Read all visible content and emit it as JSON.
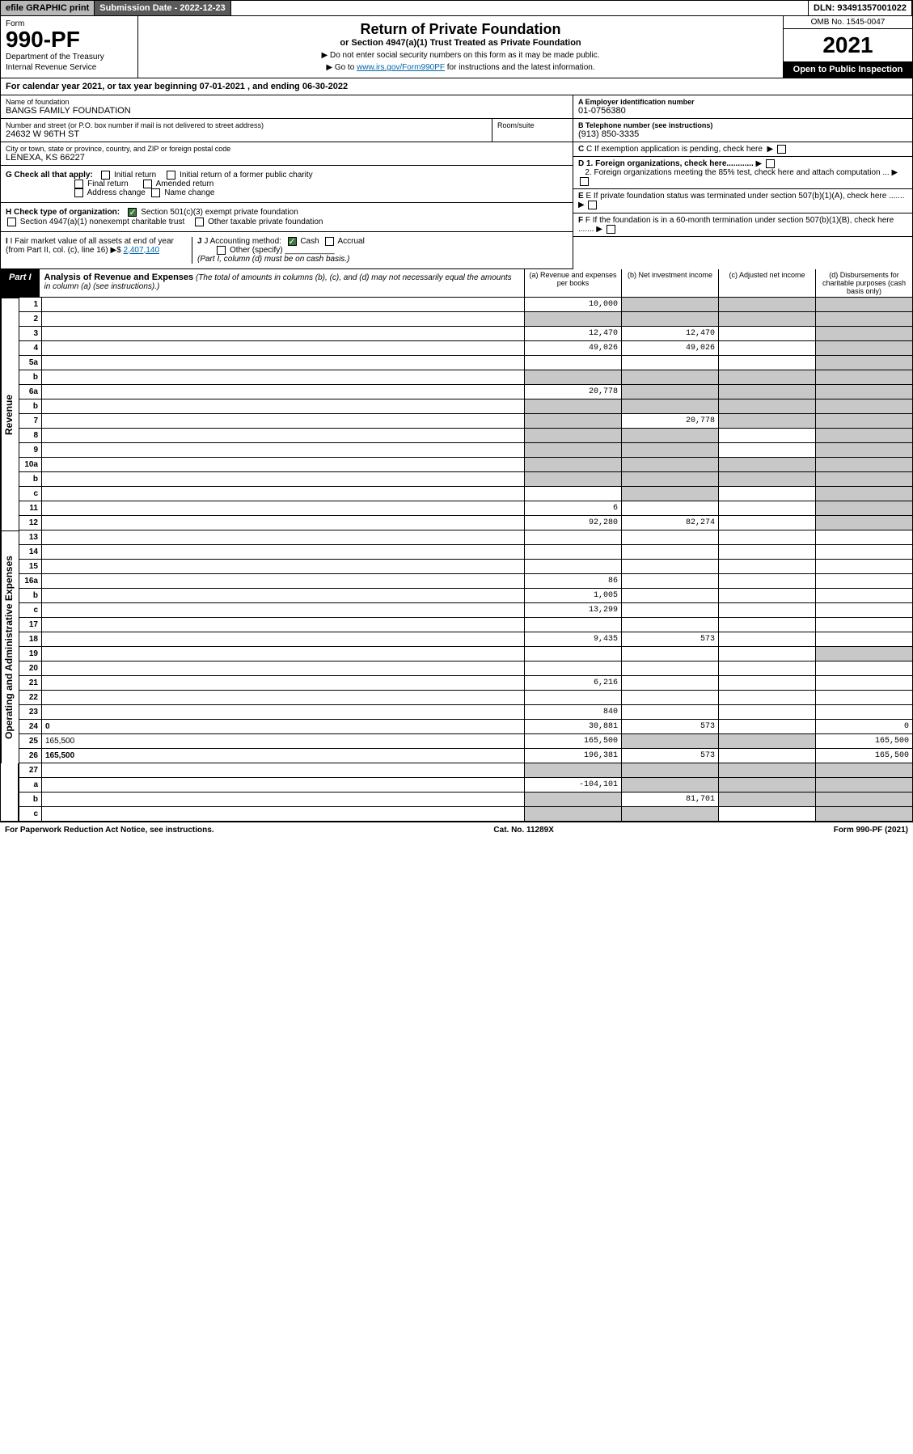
{
  "topbar": {
    "efile": "efile GRAPHIC print",
    "subdate_lbl": "Submission Date - ",
    "subdate": "2022-12-23",
    "dln_lbl": "DLN: ",
    "dln": "93491357001022"
  },
  "header": {
    "form_word": "Form",
    "form_num": "990-PF",
    "dept1": "Department of the Treasury",
    "dept2": "Internal Revenue Service",
    "title": "Return of Private Foundation",
    "sub": "or Section 4947(a)(1) Trust Treated as Private Foundation",
    "instr1": "▶ Do not enter social security numbers on this form as it may be made public.",
    "instr2_pre": "▶ Go to ",
    "instr2_link": "www.irs.gov/Form990PF",
    "instr2_post": " for instructions and the latest information.",
    "omb": "OMB No. 1545-0047",
    "year": "2021",
    "open": "Open to Public Inspection"
  },
  "cal": {
    "pre": "For calendar year 2021, or tax year beginning ",
    "begin": "07-01-2021",
    "mid": " , and ending ",
    "end": "06-30-2022"
  },
  "info": {
    "name_lbl": "Name of foundation",
    "name": "BANGS FAMILY FOUNDATION",
    "ein_lbl": "A Employer identification number",
    "ein": "01-0756380",
    "addr_lbl": "Number and street (or P.O. box number if mail is not delivered to street address)",
    "addr": "24632 W 96TH ST",
    "room_lbl": "Room/suite",
    "room": "",
    "tel_lbl": "B Telephone number (see instructions)",
    "tel": "(913) 850-3335",
    "city_lbl": "City or town, state or province, country, and ZIP or foreign postal code",
    "city": "LENEXA, KS  66227",
    "c_lbl": "C If exemption application is pending, check here",
    "g_lbl": "G Check all that apply:",
    "g_initial": "Initial return",
    "g_initial_pub": "Initial return of a former public charity",
    "g_final": "Final return",
    "g_amended": "Amended return",
    "g_addr": "Address change",
    "g_name": "Name change",
    "d1": "D 1. Foreign organizations, check here............",
    "d2": "2. Foreign organizations meeting the 85% test, check here and attach computation ...",
    "h_lbl": "H Check type of organization:",
    "h_501c3": "Section 501(c)(3) exempt private foundation",
    "h_4947": "Section 4947(a)(1) nonexempt charitable trust",
    "h_other_tax": "Other taxable private foundation",
    "e_lbl": "E If private foundation status was terminated under section 507(b)(1)(A), check here .......",
    "i_lbl": "I Fair market value of all assets at end of year (from Part II, col. (c), line 16)",
    "i_val": "2,407,140",
    "j_lbl": "J Accounting method:",
    "j_cash": "Cash",
    "j_accrual": "Accrual",
    "j_other": "Other (specify)",
    "j_note": "(Part I, column (d) must be on cash basis.)",
    "f_lbl": "F If the foundation is in a 60-month termination under section 507(b)(1)(B), check here ......."
  },
  "part1": {
    "tag": "Part I",
    "title": "Analysis of Revenue and Expenses",
    "sub": "(The total of amounts in columns (b), (c), and (d) may not necessarily equal the amounts in column (a) (see instructions).)",
    "col_a": "(a) Revenue and expenses per books",
    "col_b": "(b) Net investment income",
    "col_c": "(c) Adjusted net income",
    "col_d": "(d) Disbursements for charitable purposes (cash basis only)"
  },
  "side": {
    "revenue": "Revenue",
    "expenses": "Operating and Administrative Expenses"
  },
  "rows": [
    {
      "n": "1",
      "d": "",
      "a": "10,000",
      "b": "",
      "c": "",
      "shade_b": true,
      "shade_c": true,
      "shade_d": true
    },
    {
      "n": "2",
      "d": "",
      "a": "",
      "b": "",
      "c": "",
      "shade_a": true,
      "shade_b": true,
      "shade_c": true,
      "shade_d": true
    },
    {
      "n": "3",
      "d": "",
      "a": "12,470",
      "b": "12,470",
      "c": "",
      "shade_d": true
    },
    {
      "n": "4",
      "d": "",
      "a": "49,026",
      "b": "49,026",
      "c": "",
      "shade_d": true
    },
    {
      "n": "5a",
      "d": "",
      "a": "",
      "b": "",
      "c": "",
      "shade_d": true
    },
    {
      "n": "b",
      "d": "",
      "a": "",
      "b": "",
      "c": "",
      "shade_a": true,
      "shade_b": true,
      "shade_c": true,
      "shade_d": true
    },
    {
      "n": "6a",
      "d": "",
      "a": "20,778",
      "b": "",
      "c": "",
      "shade_b": true,
      "shade_c": true,
      "shade_d": true
    },
    {
      "n": "b",
      "d": "",
      "a": "",
      "b": "",
      "c": "",
      "shade_a": true,
      "shade_b": true,
      "shade_c": true,
      "shade_d": true
    },
    {
      "n": "7",
      "d": "",
      "a": "",
      "b": "20,778",
      "c": "",
      "shade_a": true,
      "shade_c": true,
      "shade_d": true
    },
    {
      "n": "8",
      "d": "",
      "a": "",
      "b": "",
      "c": "",
      "shade_a": true,
      "shade_b": true,
      "shade_d": true
    },
    {
      "n": "9",
      "d": "",
      "a": "",
      "b": "",
      "c": "",
      "shade_a": true,
      "shade_b": true,
      "shade_d": true
    },
    {
      "n": "10a",
      "d": "",
      "a": "",
      "b": "",
      "c": "",
      "shade_a": true,
      "shade_b": true,
      "shade_c": true,
      "shade_d": true
    },
    {
      "n": "b",
      "d": "",
      "a": "",
      "b": "",
      "c": "",
      "shade_a": true,
      "shade_b": true,
      "shade_c": true,
      "shade_d": true
    },
    {
      "n": "c",
      "d": "",
      "a": "",
      "b": "",
      "c": "",
      "shade_b": true,
      "shade_d": true
    },
    {
      "n": "11",
      "d": "",
      "a": "6",
      "b": "",
      "c": "",
      "shade_d": true
    },
    {
      "n": "12",
      "d": "",
      "a": "92,280",
      "b": "82,274",
      "c": "",
      "bold": true,
      "shade_d": true
    }
  ],
  "rows2": [
    {
      "n": "13",
      "d": "",
      "a": "",
      "b": "",
      "c": ""
    },
    {
      "n": "14",
      "d": "",
      "a": "",
      "b": "",
      "c": ""
    },
    {
      "n": "15",
      "d": "",
      "a": "",
      "b": "",
      "c": ""
    },
    {
      "n": "16a",
      "d": "",
      "a": "86",
      "b": "",
      "c": ""
    },
    {
      "n": "b",
      "d": "",
      "a": "1,005",
      "b": "",
      "c": ""
    },
    {
      "n": "c",
      "d": "",
      "a": "13,299",
      "b": "",
      "c": ""
    },
    {
      "n": "17",
      "d": "",
      "a": "",
      "b": "",
      "c": ""
    },
    {
      "n": "18",
      "d": "",
      "a": "9,435",
      "b": "573",
      "c": ""
    },
    {
      "n": "19",
      "d": "",
      "a": "",
      "b": "",
      "c": "",
      "shade_d": true
    },
    {
      "n": "20",
      "d": "",
      "a": "",
      "b": "",
      "c": ""
    },
    {
      "n": "21",
      "d": "",
      "a": "6,216",
      "b": "",
      "c": ""
    },
    {
      "n": "22",
      "d": "",
      "a": "",
      "b": "",
      "c": ""
    },
    {
      "n": "23",
      "d": "",
      "a": "840",
      "b": "",
      "c": ""
    },
    {
      "n": "24",
      "d": "0",
      "a": "30,881",
      "b": "573",
      "c": "",
      "bold": true
    },
    {
      "n": "25",
      "d": "165,500",
      "a": "165,500",
      "b": "",
      "c": "",
      "shade_b": true,
      "shade_c": true
    },
    {
      "n": "26",
      "d": "165,500",
      "a": "196,381",
      "b": "573",
      "c": "",
      "bold": true
    }
  ],
  "rows3": [
    {
      "n": "27",
      "d": "",
      "a": "",
      "b": "",
      "c": "",
      "shade_a": true,
      "shade_b": true,
      "shade_c": true,
      "shade_d": true
    },
    {
      "n": "a",
      "d": "",
      "a": "-104,101",
      "b": "",
      "c": "",
      "bold": true,
      "shade_b": true,
      "shade_c": true,
      "shade_d": true
    },
    {
      "n": "b",
      "d": "",
      "a": "",
      "b": "81,701",
      "c": "",
      "bold": true,
      "shade_a": true,
      "shade_c": true,
      "shade_d": true
    },
    {
      "n": "c",
      "d": "",
      "a": "",
      "b": "",
      "c": "",
      "bold": true,
      "shade_a": true,
      "shade_b": true,
      "shade_d": true
    }
  ],
  "footer": {
    "left": "For Paperwork Reduction Act Notice, see instructions.",
    "mid": "Cat. No. 11289X",
    "right": "Form 990-PF (2021)"
  }
}
